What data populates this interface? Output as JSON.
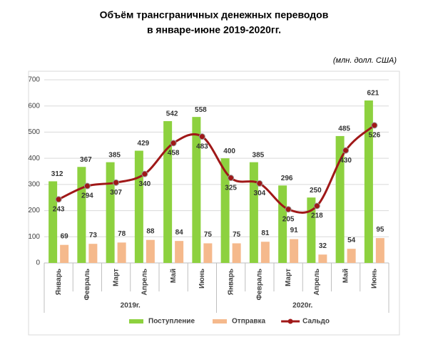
{
  "chart_data": {
    "type": "bar",
    "title": "Объём трансграничных денежных переводов",
    "subtitle": "в январе-июне 2019-2020гг.",
    "units_note": "(млн. долл. США)",
    "categories": [
      "Январь",
      "Февраль",
      "Март",
      "Апрель",
      "Май",
      "Июнь",
      "Январь",
      "Февраль",
      "Март",
      "Апрель",
      "Май",
      "Июнь"
    ],
    "category_groups": [
      {
        "name": "2019г.",
        "size": 6
      },
      {
        "name": "2020г.",
        "size": 6
      }
    ],
    "series": [
      {
        "name": "Поступление",
        "type": "bar",
        "color": "#8dd13f",
        "values": [
          312,
          367,
          385,
          429,
          542,
          558,
          400,
          385,
          296,
          250,
          485,
          621
        ]
      },
      {
        "name": "Отправка",
        "type": "bar",
        "color": "#f5b98c",
        "values": [
          69,
          73,
          78,
          88,
          84,
          75,
          75,
          81,
          91,
          32,
          54,
          95
        ]
      },
      {
        "name": "Сальдо",
        "type": "line",
        "color": "#a01818",
        "values": [
          243,
          294,
          307,
          340,
          458,
          483,
          325,
          304,
          205,
          218,
          430,
          526
        ]
      }
    ],
    "ylim": [
      0,
      700
    ],
    "yticks": [
      0,
      100,
      200,
      300,
      400,
      500,
      600,
      700
    ],
    "grid": true,
    "legend": "bottom"
  }
}
